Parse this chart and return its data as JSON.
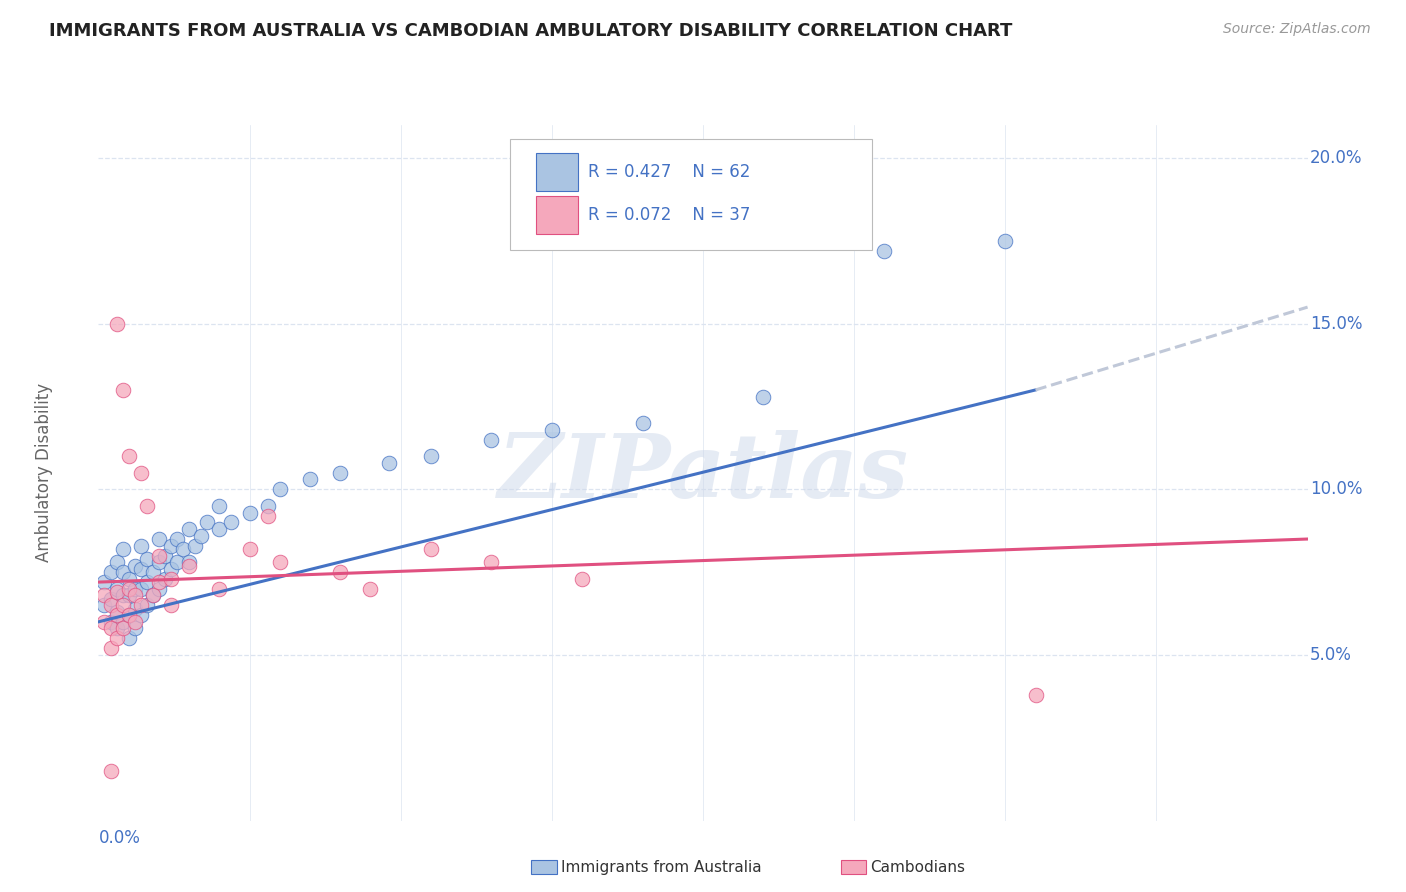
{
  "title": "IMMIGRANTS FROM AUSTRALIA VS CAMBODIAN AMBULATORY DISABILITY CORRELATION CHART",
  "source": "Source: ZipAtlas.com",
  "ylabel": "Ambulatory Disability",
  "legend_r1": "R = 0.427",
  "legend_n1": "N = 62",
  "legend_r2": "R = 0.072",
  "legend_n2": "N = 37",
  "watermark_text": "ZIPatlas",
  "xlim": [
    0.0,
    0.2
  ],
  "ylim": [
    0.0,
    0.21
  ],
  "australia_color": "#aac4e2",
  "cambodian_color": "#f5a8bc",
  "trend_australia_color": "#4472c4",
  "trend_cambodian_color": "#e05080",
  "trend_ext_color": "#c0c8d8",
  "grid_color": "#dce4f0",
  "background_color": "#ffffff",
  "title_color": "#222222",
  "axis_label_color": "#4472c4",
  "trend_aus_x0": 0.0,
  "trend_aus_y0": 0.06,
  "trend_aus_x1": 0.155,
  "trend_aus_y1": 0.13,
  "trend_aus_xext": 0.2,
  "trend_aus_yext": 0.155,
  "trend_cam_x0": 0.0,
  "trend_cam_y0": 0.072,
  "trend_cam_x1": 0.2,
  "trend_cam_y1": 0.085,
  "australia_points": [
    [
      0.001,
      0.065
    ],
    [
      0.001,
      0.072
    ],
    [
      0.002,
      0.06
    ],
    [
      0.002,
      0.067
    ],
    [
      0.002,
      0.075
    ],
    [
      0.003,
      0.058
    ],
    [
      0.003,
      0.063
    ],
    [
      0.003,
      0.07
    ],
    [
      0.003,
      0.078
    ],
    [
      0.004,
      0.06
    ],
    [
      0.004,
      0.068
    ],
    [
      0.004,
      0.075
    ],
    [
      0.004,
      0.082
    ],
    [
      0.005,
      0.055
    ],
    [
      0.005,
      0.062
    ],
    [
      0.005,
      0.068
    ],
    [
      0.005,
      0.073
    ],
    [
      0.006,
      0.058
    ],
    [
      0.006,
      0.064
    ],
    [
      0.006,
      0.07
    ],
    [
      0.006,
      0.077
    ],
    [
      0.007,
      0.062
    ],
    [
      0.007,
      0.07
    ],
    [
      0.007,
      0.076
    ],
    [
      0.007,
      0.083
    ],
    [
      0.008,
      0.065
    ],
    [
      0.008,
      0.072
    ],
    [
      0.008,
      0.079
    ],
    [
      0.009,
      0.068
    ],
    [
      0.009,
      0.075
    ],
    [
      0.01,
      0.07
    ],
    [
      0.01,
      0.078
    ],
    [
      0.01,
      0.085
    ],
    [
      0.011,
      0.073
    ],
    [
      0.011,
      0.08
    ],
    [
      0.012,
      0.076
    ],
    [
      0.012,
      0.083
    ],
    [
      0.013,
      0.078
    ],
    [
      0.013,
      0.085
    ],
    [
      0.014,
      0.082
    ],
    [
      0.015,
      0.078
    ],
    [
      0.015,
      0.088
    ],
    [
      0.016,
      0.083
    ],
    [
      0.017,
      0.086
    ],
    [
      0.018,
      0.09
    ],
    [
      0.02,
      0.088
    ],
    [
      0.02,
      0.095
    ],
    [
      0.022,
      0.09
    ],
    [
      0.025,
      0.093
    ],
    [
      0.028,
      0.095
    ],
    [
      0.03,
      0.1
    ],
    [
      0.035,
      0.103
    ],
    [
      0.04,
      0.105
    ],
    [
      0.048,
      0.108
    ],
    [
      0.055,
      0.11
    ],
    [
      0.065,
      0.115
    ],
    [
      0.075,
      0.118
    ],
    [
      0.09,
      0.12
    ],
    [
      0.11,
      0.175
    ],
    [
      0.13,
      0.172
    ],
    [
      0.15,
      0.175
    ],
    [
      0.11,
      0.128
    ]
  ],
  "cambodian_points": [
    [
      0.001,
      0.06
    ],
    [
      0.001,
      0.068
    ],
    [
      0.002,
      0.052
    ],
    [
      0.002,
      0.058
    ],
    [
      0.002,
      0.065
    ],
    [
      0.003,
      0.055
    ],
    [
      0.003,
      0.062
    ],
    [
      0.003,
      0.069
    ],
    [
      0.003,
      0.15
    ],
    [
      0.004,
      0.058
    ],
    [
      0.004,
      0.065
    ],
    [
      0.004,
      0.13
    ],
    [
      0.005,
      0.062
    ],
    [
      0.005,
      0.07
    ],
    [
      0.005,
      0.11
    ],
    [
      0.006,
      0.06
    ],
    [
      0.006,
      0.068
    ],
    [
      0.007,
      0.065
    ],
    [
      0.007,
      0.105
    ],
    [
      0.008,
      0.095
    ],
    [
      0.009,
      0.068
    ],
    [
      0.01,
      0.072
    ],
    [
      0.01,
      0.08
    ],
    [
      0.012,
      0.065
    ],
    [
      0.012,
      0.073
    ],
    [
      0.015,
      0.077
    ],
    [
      0.02,
      0.07
    ],
    [
      0.025,
      0.082
    ],
    [
      0.028,
      0.092
    ],
    [
      0.03,
      0.078
    ],
    [
      0.04,
      0.075
    ],
    [
      0.045,
      0.07
    ],
    [
      0.055,
      0.082
    ],
    [
      0.065,
      0.078
    ],
    [
      0.08,
      0.073
    ],
    [
      0.155,
      0.038
    ],
    [
      0.002,
      0.015
    ]
  ]
}
